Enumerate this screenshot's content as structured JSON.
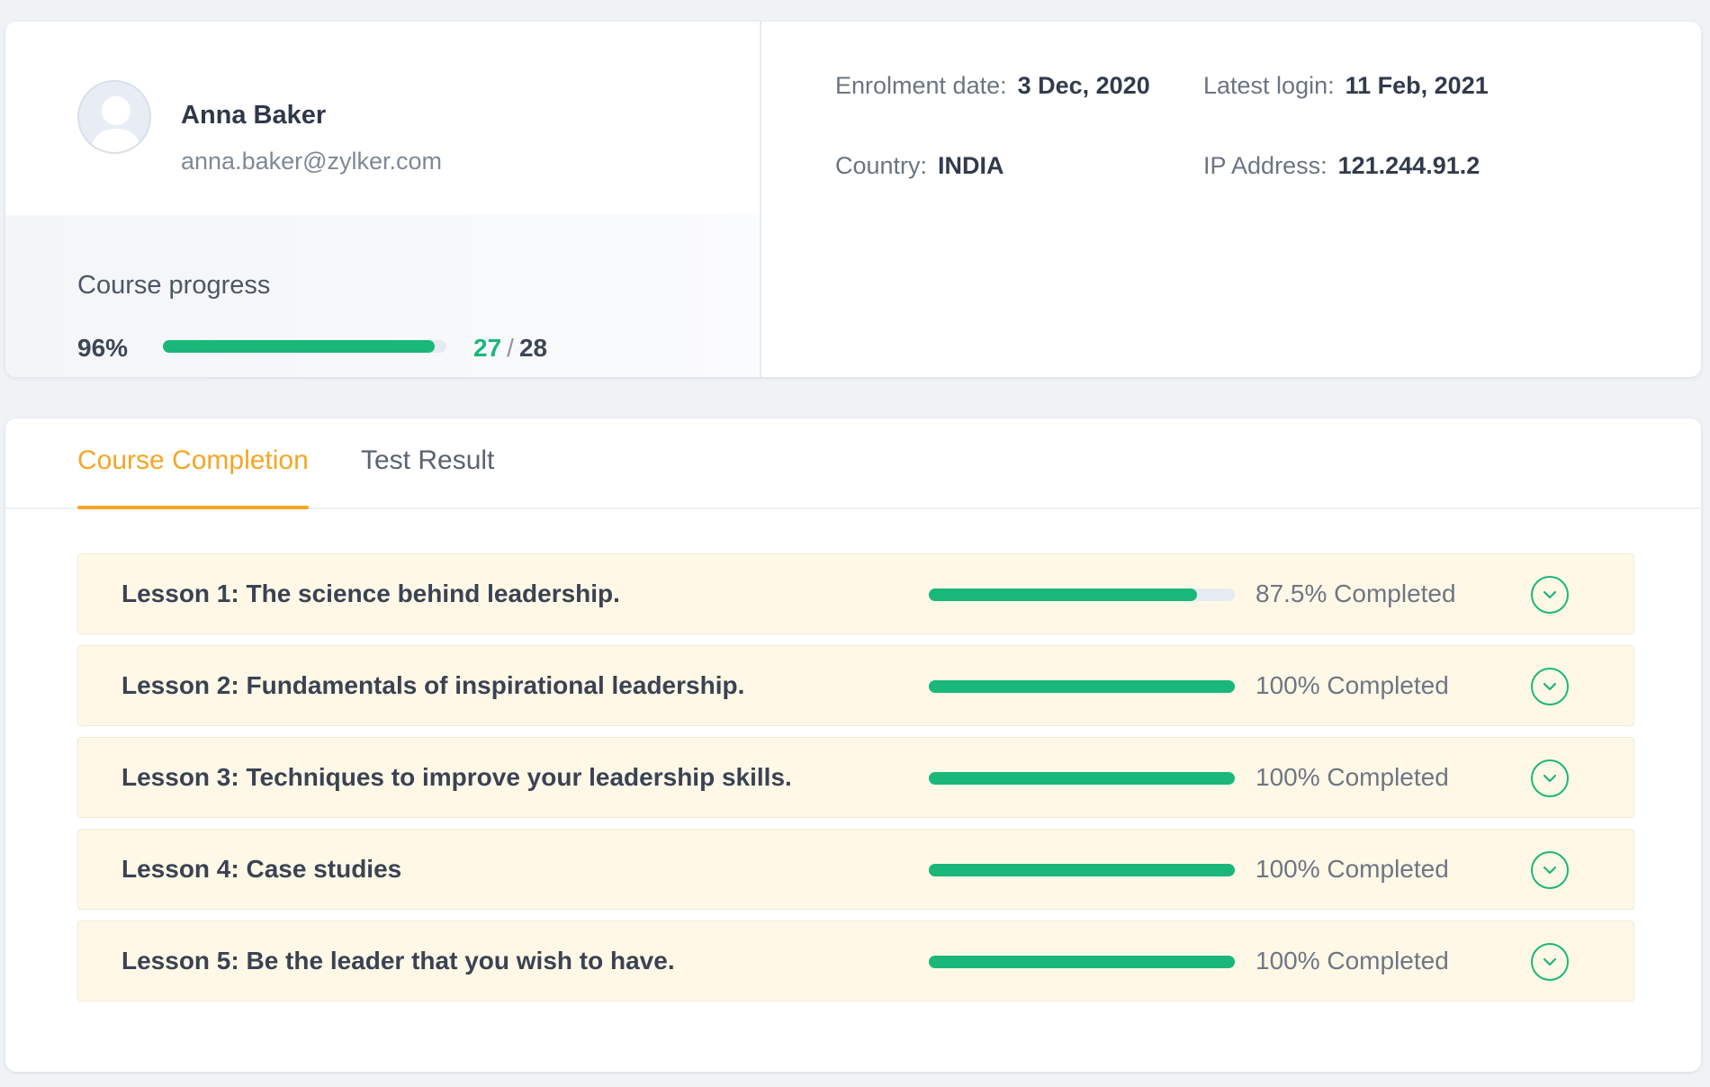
{
  "profile": {
    "name": "Anna Baker",
    "email": "anna.baker@zylker.com",
    "avatar_icon": "user-avatar-placeholder-icon"
  },
  "course_progress": {
    "label": "Course progress",
    "percent_text": "96%",
    "fill_fraction": 0.96,
    "completed": "27",
    "separator": "/",
    "total": "28"
  },
  "details": {
    "enrolment_label": "Enrolment date:",
    "enrolment_value": "3 Dec, 2020",
    "login_label": "Latest login:",
    "login_value": "11 Feb, 2021",
    "country_label": "Country:",
    "country_value": "INDIA",
    "ip_label": "IP Address:",
    "ip_value": "121.244.91.2"
  },
  "tabs": [
    {
      "label": "Course Completion",
      "active": true
    },
    {
      "label": "Test Result",
      "active": false
    }
  ],
  "lessons": [
    {
      "title": "Lesson 1: The science behind leadership.",
      "progress": 0.875,
      "status": "87.5% Completed",
      "icon": "chevron-down-icon"
    },
    {
      "title": "Lesson 2: Fundamentals of inspirational leadership.",
      "progress": 1.0,
      "status": "100% Completed",
      "icon": "chevron-down-icon"
    },
    {
      "title": "Lesson 3: Techniques to improve your leadership skills.",
      "progress": 1.0,
      "status": "100% Completed",
      "icon": "chevron-down-icon"
    },
    {
      "title": "Lesson 4: Case studies",
      "progress": 1.0,
      "status": "100% Completed",
      "icon": "chevron-down-icon"
    },
    {
      "title": "Lesson 5: Be the leader that you wish to have.",
      "progress": 1.0,
      "status": "100% Completed",
      "icon": "chevron-down-icon"
    }
  ],
  "colors": {
    "accent": "#f5a623",
    "progress_green": "#1ab77a",
    "lesson_background": "#fff8e6",
    "page_background": "#f0f3f6"
  }
}
